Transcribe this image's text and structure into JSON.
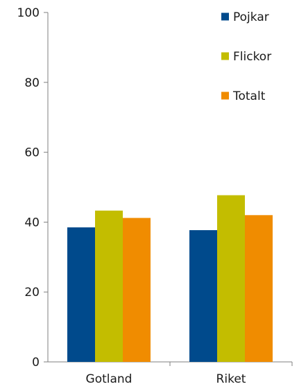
{
  "chart_data": {
    "type": "bar",
    "title": "",
    "xlabel": "",
    "ylabel": "",
    "categories": [
      "Gotland",
      "Riket"
    ],
    "series": [
      {
        "name": "Pojkar",
        "values": [
          38.5,
          37.7
        ],
        "color": "#004a8c"
      },
      {
        "name": "Flickor",
        "values": [
          43.3,
          47.7
        ],
        "color": "#c3bd00"
      },
      {
        "name": "Totalt",
        "values": [
          41.2,
          42.0
        ],
        "color": "#f08c00"
      }
    ],
    "ylim": [
      0,
      100
    ],
    "yticks": [
      0,
      20,
      40,
      60,
      80,
      100
    ],
    "grid": false,
    "legend_position": "top-right"
  }
}
